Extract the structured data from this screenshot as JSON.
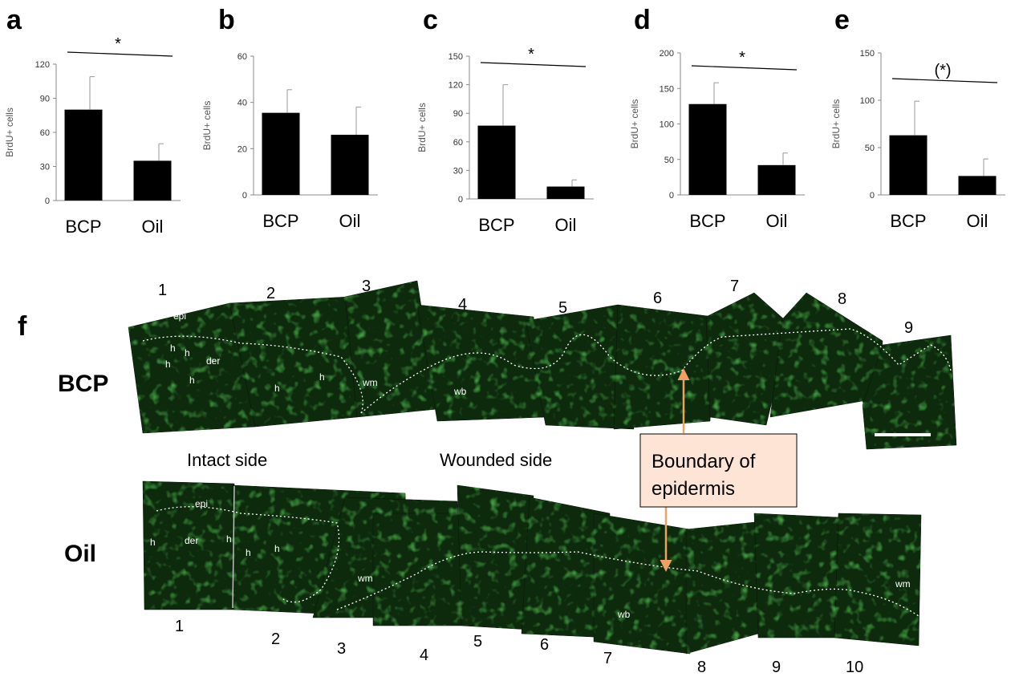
{
  "panel_letters": [
    "a",
    "b",
    "c",
    "d",
    "e",
    "f"
  ],
  "chart_data": [
    {
      "type": "bar",
      "panel": "a",
      "categories": [
        "BCP",
        "Oil"
      ],
      "values": [
        80,
        35
      ],
      "errors": [
        29,
        15
      ],
      "ylabel": "BrdU+ cells",
      "ylim": [
        0,
        120
      ],
      "yticks": [
        "0",
        "30",
        "60",
        "90",
        "120"
      ],
      "significance": "*"
    },
    {
      "type": "bar",
      "panel": "b",
      "categories": [
        "BCP",
        "Oil"
      ],
      "values": [
        35.5,
        26
      ],
      "errors": [
        10,
        12
      ],
      "ylabel": "BrdU+ cells",
      "ylim": [
        0,
        60
      ],
      "yticks": [
        "0",
        "20",
        "40",
        "60"
      ],
      "significance": ""
    },
    {
      "type": "bar",
      "panel": "c",
      "categories": [
        "BCP",
        "Oil"
      ],
      "values": [
        77,
        13
      ],
      "errors": [
        43,
        7
      ],
      "ylabel": "BrdU+ cells",
      "ylim": [
        0,
        150
      ],
      "yticks": [
        "0",
        "30",
        "60",
        "90",
        "120",
        "150"
      ],
      "significance": "*"
    },
    {
      "type": "bar",
      "panel": "d",
      "categories": [
        "BCP",
        "Oil"
      ],
      "values": [
        128,
        42
      ],
      "errors": [
        30,
        17
      ],
      "ylabel": "BrdU+ cells",
      "ylim": [
        0,
        200
      ],
      "yticks": [
        "0",
        "50",
        "100",
        "150",
        "200"
      ],
      "significance": "*"
    },
    {
      "type": "bar",
      "panel": "e",
      "categories": [
        "BCP",
        "Oil"
      ],
      "values": [
        63,
        20
      ],
      "errors": [
        36,
        18
      ],
      "ylabel": "BrdU+ cells",
      "ylim": [
        0,
        150
      ],
      "yticks": [
        "0",
        "50",
        "100",
        "150"
      ],
      "significance": "(*)"
    }
  ],
  "micrograph": {
    "rows": [
      "BCP",
      "Oil"
    ],
    "bcp_section_numbers": [
      "1",
      "2",
      "3",
      "4",
      "5",
      "6",
      "7",
      "8",
      "9"
    ],
    "oil_section_numbers": [
      "1",
      "2",
      "3",
      "4",
      "5",
      "6",
      "7",
      "8",
      "9",
      "10"
    ],
    "tissue_labels": {
      "epi": "epi",
      "der": "der",
      "h": "h",
      "wm": "wm",
      "wb": "wb"
    },
    "side_labels": {
      "intact": "Intact side",
      "wounded": "Wounded side"
    },
    "callout": {
      "line1": "Boundary of",
      "line2": "epidermis",
      "fill_color": "#fde4d4",
      "arrow_color": "#f0a060"
    },
    "tissue_color": "#0d2a0d",
    "signal_color": "#3ccc3c"
  }
}
